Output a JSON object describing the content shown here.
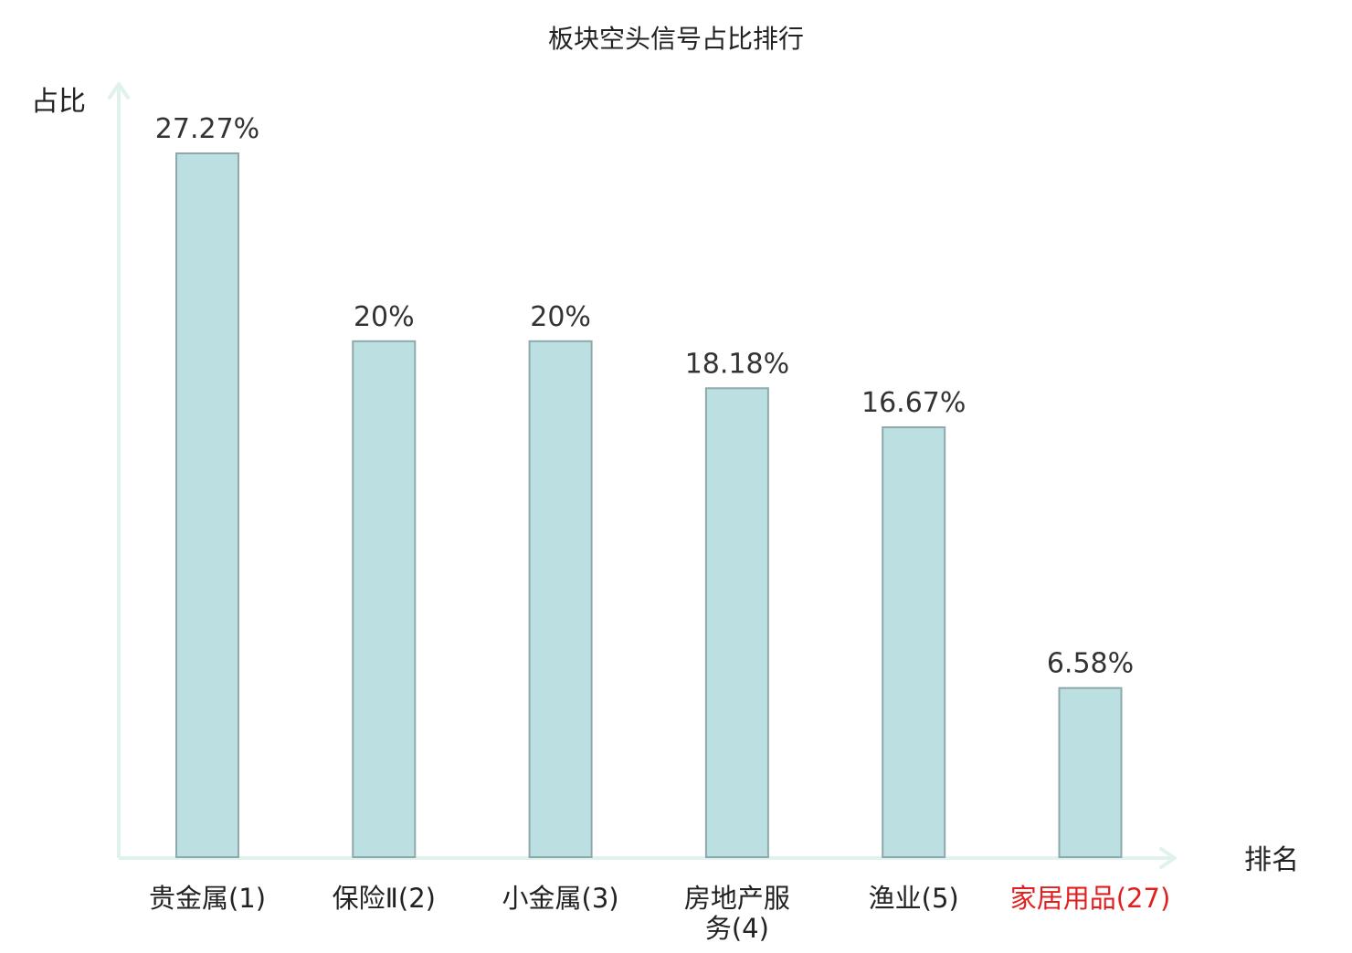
{
  "chart_data": {
    "type": "bar",
    "title": "板块空头信号占比排行",
    "xlabel": "排名",
    "ylabel": "占比",
    "categories": [
      {
        "lines": [
          "贵金属(1)"
        ],
        "highlight": false
      },
      {
        "lines": [
          "保险Ⅱ(2)"
        ],
        "highlight": false
      },
      {
        "lines": [
          "小金属(3)"
        ],
        "highlight": false
      },
      {
        "lines": [
          "房地产服",
          "务(4)"
        ],
        "highlight": false
      },
      {
        "lines": [
          "渔业(5)"
        ],
        "highlight": false
      },
      {
        "lines": [
          "家居用品(27)"
        ],
        "highlight": true
      }
    ],
    "values": [
      27.27,
      20,
      20,
      18.18,
      16.67,
      6.58
    ],
    "value_labels": [
      "27.27%",
      "20%",
      "20%",
      "18.18%",
      "16.67%",
      "6.58%"
    ],
    "ylim": [
      0,
      27.27
    ],
    "grid": false,
    "colors": {
      "bar_fill": "#bce0e2",
      "bar_stroke": "#8fa9aa",
      "axis": "#dff2ee",
      "text": "#222222",
      "value_text": "#333333",
      "highlight_text": "#e02020"
    }
  }
}
